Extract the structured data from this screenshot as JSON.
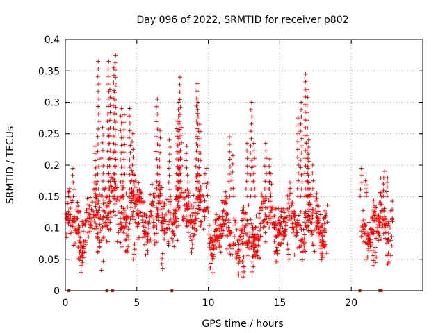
{
  "chart_data": {
    "type": "scatter",
    "title": "Day 096 of 2022, SRMTID for receiver p802",
    "xlabel": "GPS time / hours",
    "ylabel": "SRMTID / TECUs",
    "xlim": [
      0,
      25
    ],
    "ylim": [
      0,
      0.4
    ],
    "xticks": [
      0,
      5,
      10,
      15,
      20
    ],
    "yticks": [
      0,
      0.05,
      0.1,
      0.15,
      0.2,
      0.25,
      0.3,
      0.35,
      0.4
    ],
    "xtick_labels": [
      "0",
      "5",
      "10",
      "15",
      "20"
    ],
    "ytick_labels": [
      "0",
      "0.05",
      "0.1",
      "0.15",
      "0.2",
      "0.25",
      "0.3",
      "0.35",
      "0.4"
    ],
    "grid": true,
    "marker": "+",
    "marker_color": "#ff0000",
    "axis_color": "#000000",
    "grid_color": "#a0a0a0",
    "segments": [
      {
        "start": 0.0,
        "end": 2.3,
        "base": 0.105,
        "spread": 0.035
      },
      {
        "start": 2.3,
        "end": 5.0,
        "base": 0.13,
        "spread": 0.045
      },
      {
        "start": 5.0,
        "end": 7.5,
        "base": 0.115,
        "spread": 0.04
      },
      {
        "start": 7.5,
        "end": 10.0,
        "base": 0.125,
        "spread": 0.04
      },
      {
        "start": 10.0,
        "end": 12.0,
        "base": 0.095,
        "spread": 0.03
      },
      {
        "start": 12.0,
        "end": 13.3,
        "base": 0.085,
        "spread": 0.03
      },
      {
        "start": 13.3,
        "end": 15.5,
        "base": 0.11,
        "spread": 0.035
      },
      {
        "start": 15.5,
        "end": 18.4,
        "base": 0.105,
        "spread": 0.035
      },
      {
        "start": 20.7,
        "end": 22.0,
        "base": 0.1,
        "spread": 0.03
      },
      {
        "start": 22.0,
        "end": 22.9,
        "base": 0.11,
        "spread": 0.035
      }
    ],
    "peaks": [
      {
        "x": 0.55,
        "y": 0.195
      },
      {
        "x": 2.1,
        "y": 0.23
      },
      {
        "x": 2.3,
        "y": 0.365
      },
      {
        "x": 2.6,
        "y": 0.26
      },
      {
        "x": 3.0,
        "y": 0.365
      },
      {
        "x": 3.1,
        "y": 0.32
      },
      {
        "x": 3.4,
        "y": 0.355
      },
      {
        "x": 3.5,
        "y": 0.375
      },
      {
        "x": 3.9,
        "y": 0.29
      },
      {
        "x": 4.1,
        "y": 0.28
      },
      {
        "x": 4.5,
        "y": 0.29
      },
      {
        "x": 4.7,
        "y": 0.25
      },
      {
        "x": 6.4,
        "y": 0.305
      },
      {
        "x": 6.6,
        "y": 0.255
      },
      {
        "x": 7.3,
        "y": 0.24
      },
      {
        "x": 7.8,
        "y": 0.27
      },
      {
        "x": 7.9,
        "y": 0.3
      },
      {
        "x": 8.0,
        "y": 0.34
      },
      {
        "x": 8.1,
        "y": 0.26
      },
      {
        "x": 8.5,
        "y": 0.23
      },
      {
        "x": 9.2,
        "y": 0.33
      },
      {
        "x": 9.3,
        "y": 0.3
      },
      {
        "x": 9.4,
        "y": 0.265
      },
      {
        "x": 11.5,
        "y": 0.245
      },
      {
        "x": 11.7,
        "y": 0.215
      },
      {
        "x": 12.7,
        "y": 0.235
      },
      {
        "x": 13.0,
        "y": 0.3
      },
      {
        "x": 13.2,
        "y": 0.235
      },
      {
        "x": 14.0,
        "y": 0.235
      },
      {
        "x": 14.3,
        "y": 0.21
      },
      {
        "x": 16.3,
        "y": 0.275
      },
      {
        "x": 16.5,
        "y": 0.3
      },
      {
        "x": 16.8,
        "y": 0.345
      },
      {
        "x": 16.9,
        "y": 0.32
      },
      {
        "x": 17.0,
        "y": 0.24
      },
      {
        "x": 17.3,
        "y": 0.2
      },
      {
        "x": 20.7,
        "y": 0.195
      },
      {
        "x": 21.0,
        "y": 0.175
      },
      {
        "x": 22.3,
        "y": 0.19
      },
      {
        "x": 22.5,
        "y": 0.18
      }
    ],
    "dips": [
      {
        "x": 1.1,
        "y": 0.04
      },
      {
        "x": 1.2,
        "y": 0.045
      },
      {
        "x": 4.8,
        "y": 0.05
      },
      {
        "x": 6.8,
        "y": 0.035
      },
      {
        "x": 10.3,
        "y": 0.05
      },
      {
        "x": 12.4,
        "y": 0.022
      },
      {
        "x": 12.5,
        "y": 0.03
      },
      {
        "x": 13.1,
        "y": 0.03
      },
      {
        "x": 15.6,
        "y": 0.05
      },
      {
        "x": 21.5,
        "y": 0.04
      },
      {
        "x": 21.7,
        "y": 0.045
      }
    ],
    "zero_markers_x": [
      0.25,
      2.9,
      3.3,
      7.45,
      20.6,
      22.0,
      22.1
    ],
    "point_count": 1400,
    "seed": 96
  }
}
